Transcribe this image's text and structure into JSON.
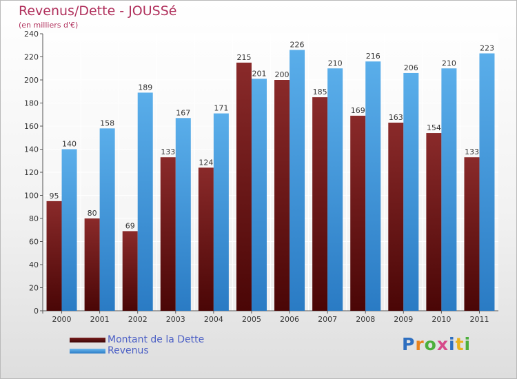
{
  "title": "Revenus/Dette - JOUSSé",
  "subtitle": "(en milliers d'€)",
  "logo": {
    "text": "Proxiti",
    "letter_colors": [
      "#2e6fc0",
      "#e8821e",
      "#4caf3c",
      "#d64a8a",
      "#2e6fc0",
      "#e8b21e",
      "#4caf3c"
    ]
  },
  "chart_data": {
    "type": "bar",
    "categories": [
      "2000",
      "2001",
      "2002",
      "2003",
      "2004",
      "2005",
      "2006",
      "2007",
      "2008",
      "2009",
      "2010",
      "2011"
    ],
    "series": [
      {
        "name": "Montant de la Dette",
        "color": "#7a1e1e",
        "values": [
          95,
          80,
          69,
          133,
          124,
          215,
          200,
          185,
          169,
          163,
          154,
          133
        ]
      },
      {
        "name": "Revenus",
        "color": "#4a9fe0",
        "values": [
          140,
          158,
          189,
          167,
          171,
          201,
          226,
          210,
          216,
          206,
          210,
          223
        ]
      }
    ],
    "ylim": [
      0,
      240
    ],
    "yticks": [
      0,
      20,
      40,
      60,
      80,
      100,
      120,
      140,
      160,
      180,
      200,
      220,
      240
    ],
    "grid": true,
    "legend_position": "bottom-left"
  }
}
